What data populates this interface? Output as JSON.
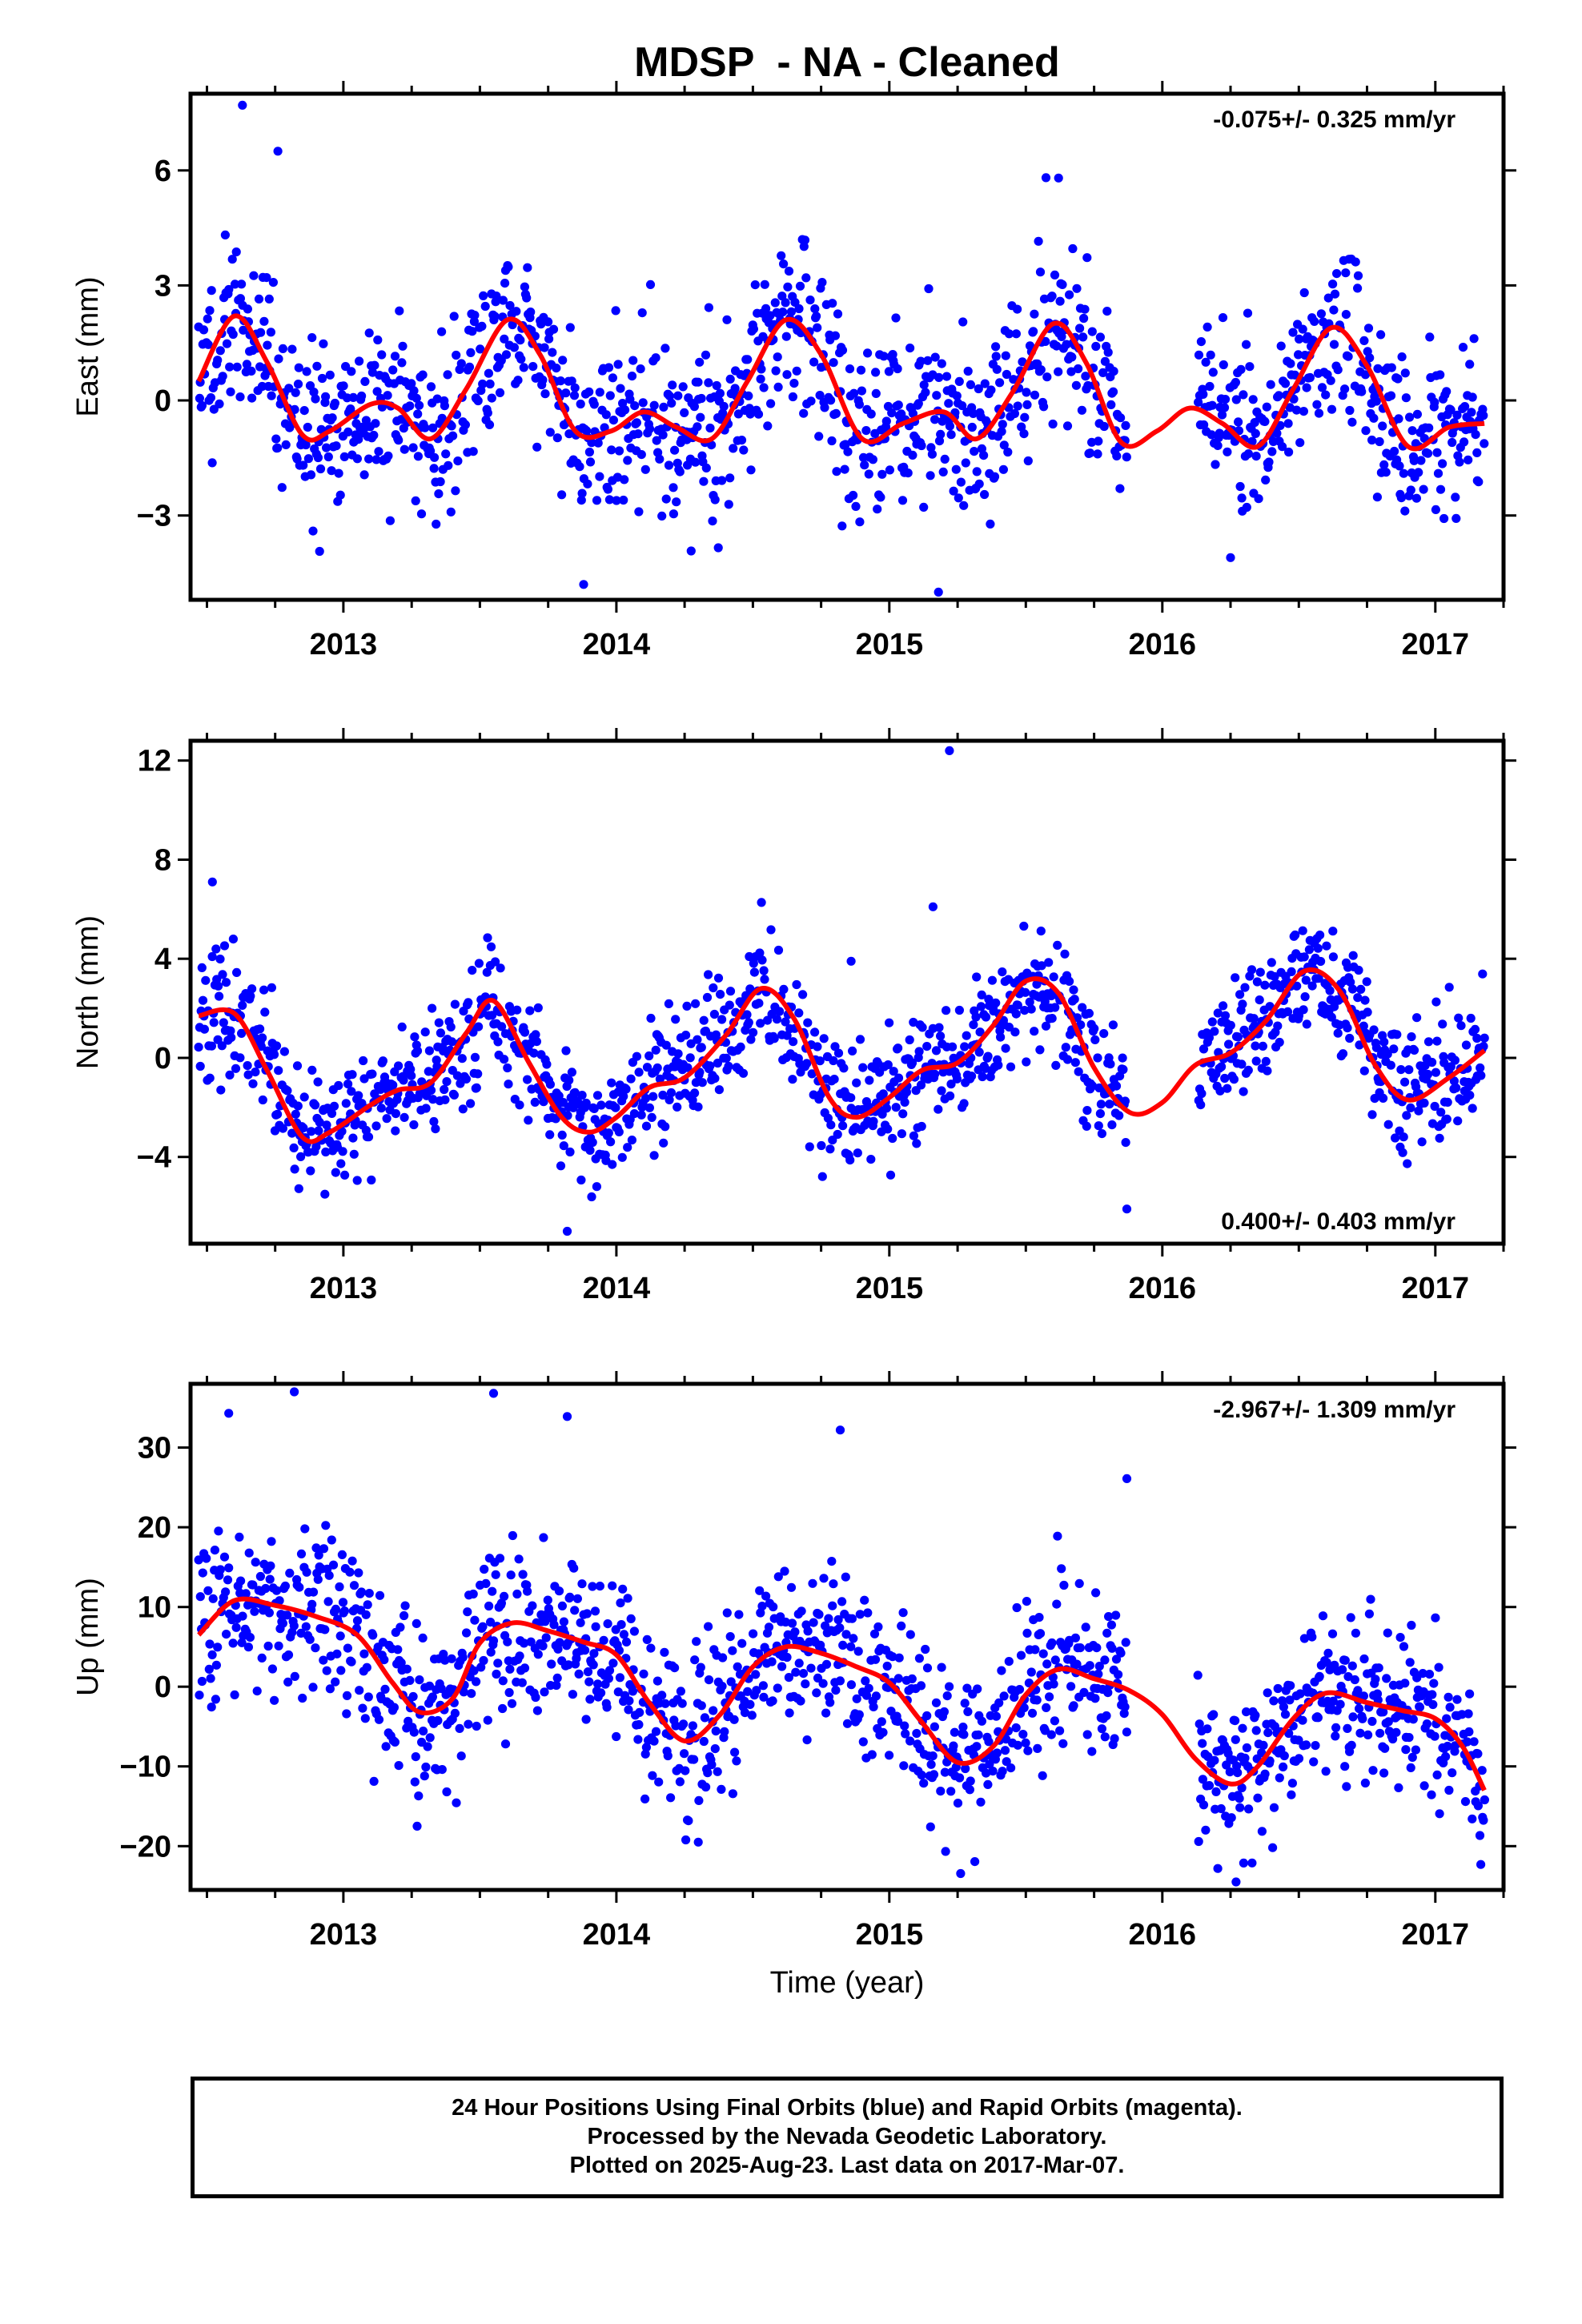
{
  "title": "MDSP  - NA - Cleaned",
  "xlabel": "Time (year)",
  "colors": {
    "points": "#0000ff",
    "fit": "#ff0000",
    "axes": "#000000"
  },
  "footer": {
    "line1": "24 Hour Positions Using Final Orbits (blue) and Rapid Orbits (magenta).",
    "line2": "Processed by the Nevada Geodetic Laboratory.",
    "line3": "Plotted on 2025-Aug-23. Last data on 2017-Mar-07."
  },
  "chart_data": [
    {
      "type": "scatter",
      "component": "east",
      "ylabel": "East (mm)",
      "rate_label": "-0.075+/- 0.325 mm/yr",
      "rate_position": "top-right",
      "xlim": [
        2012.44,
        2017.25
      ],
      "ylim": [
        -5.2,
        8.0
      ],
      "x_ticks": [
        2013,
        2014,
        2015,
        2016,
        2017
      ],
      "y_ticks": [
        -3,
        0,
        3,
        6
      ],
      "data_start": 2012.47,
      "data_end": 2017.18,
      "gaps": [
        [
          2015.87,
          2016.13
        ]
      ],
      "fit": {
        "x": [
          2012.47,
          2012.6,
          2012.72,
          2012.85,
          2012.95,
          2013.1,
          2013.2,
          2013.32,
          2013.45,
          2013.6,
          2013.72,
          2013.85,
          2013.98,
          2014.1,
          2014.22,
          2014.35,
          2014.48,
          2014.62,
          2014.75,
          2014.9,
          2015.05,
          2015.2,
          2015.32,
          2015.45,
          2015.6,
          2015.72,
          2015.85,
          2015.98,
          2016.1,
          2016.22,
          2016.35,
          2016.48,
          2016.62,
          2016.75,
          2016.9,
          2017.05,
          2017.18
        ],
        "y": [
          0.5,
          2.2,
          1.0,
          -0.9,
          -0.8,
          -0.1,
          -0.2,
          -1.0,
          0.3,
          2.1,
          1.2,
          -0.8,
          -0.8,
          -0.3,
          -0.7,
          -1.0,
          0.5,
          2.1,
          1.2,
          -1.0,
          -0.6,
          -0.3,
          -1.0,
          0.2,
          2.0,
          1.0,
          -1.1,
          -0.8,
          -0.2,
          -0.6,
          -1.2,
          0.3,
          1.9,
          0.9,
          -1.2,
          -0.7,
          -0.6
        ]
      },
      "outliers": [
        [
          2012.63,
          7.7
        ],
        [
          2012.76,
          6.5
        ],
        [
          2013.88,
          -4.8
        ],
        [
          2015.18,
          -5.0
        ],
        [
          2015.62,
          5.8
        ],
        [
          2016.25,
          -4.1
        ]
      ],
      "noise_sd": 1.1,
      "seed": 11
    },
    {
      "type": "scatter",
      "component": "north",
      "ylabel": "North (mm)",
      "rate_label": "0.400+/- 0.403 mm/yr",
      "rate_position": "bottom-right",
      "xlim": [
        2012.44,
        2017.25
      ],
      "ylim": [
        -7.5,
        12.8
      ],
      "x_ticks": [
        2013,
        2014,
        2015,
        2016,
        2017
      ],
      "y_ticks": [
        -4,
        0,
        4,
        8,
        12
      ],
      "data_start": 2012.47,
      "data_end": 2017.18,
      "gaps": [
        [
          2015.87,
          2016.13
        ]
      ],
      "fit": {
        "x": [
          2012.47,
          2012.6,
          2012.72,
          2012.85,
          2012.95,
          2013.1,
          2013.2,
          2013.32,
          2013.45,
          2013.55,
          2013.68,
          2013.8,
          2013.9,
          2014.0,
          2014.12,
          2014.25,
          2014.4,
          2014.53,
          2014.65,
          2014.78,
          2014.88,
          2015.0,
          2015.12,
          2015.25,
          2015.38,
          2015.5,
          2015.62,
          2015.75,
          2015.88,
          2016.0,
          2016.12,
          2016.25,
          2016.38,
          2016.52,
          2016.65,
          2016.78,
          2016.9,
          2017.05,
          2017.18
        ],
        "y": [
          1.7,
          1.8,
          -0.5,
          -3.2,
          -3.0,
          -1.9,
          -1.3,
          -1.0,
          1.0,
          2.3,
          -0.2,
          -2.4,
          -3.0,
          -2.4,
          -1.2,
          -0.8,
          0.9,
          2.8,
          1.6,
          -1.6,
          -2.4,
          -1.6,
          -0.5,
          -0.2,
          1.3,
          3.1,
          2.6,
          -0.4,
          -2.2,
          -1.8,
          -0.3,
          0.2,
          1.5,
          3.5,
          2.7,
          -0.3,
          -1.7,
          -0.8,
          0.3
        ]
      },
      "outliers": [
        [
          2015.22,
          12.4
        ],
        [
          2012.52,
          7.1
        ],
        [
          2015.16,
          6.1
        ],
        [
          2015.87,
          -6.1
        ],
        [
          2013.82,
          -7.0
        ],
        [
          2014.86,
          3.9
        ]
      ],
      "noise_sd": 1.2,
      "seed": 23
    },
    {
      "type": "scatter",
      "component": "up",
      "ylabel": "Up (mm)",
      "rate_label": "-2.967+/- 1.309 mm/yr",
      "rate_position": "top-right",
      "xlim": [
        2012.44,
        2017.25
      ],
      "ylim": [
        -25.5,
        38.0
      ],
      "x_ticks": [
        2013,
        2014,
        2015,
        2016,
        2017
      ],
      "y_ticks": [
        -20,
        -10,
        0,
        10,
        20,
        30
      ],
      "data_start": 2012.47,
      "data_end": 2017.18,
      "gaps": [
        [
          2015.87,
          2016.13
        ]
      ],
      "fit": {
        "x": [
          2012.47,
          2012.6,
          2012.75,
          2012.9,
          2013.05,
          2013.18,
          2013.28,
          2013.4,
          2013.5,
          2013.62,
          2013.75,
          2013.88,
          2014.0,
          2014.12,
          2014.25,
          2014.38,
          2014.5,
          2014.62,
          2014.75,
          2014.88,
          2015.0,
          2015.12,
          2015.25,
          2015.38,
          2015.5,
          2015.62,
          2015.75,
          2015.88,
          2016.0,
          2016.12,
          2016.25,
          2016.35,
          2016.48,
          2016.6,
          2016.75,
          2016.88,
          2017.0,
          2017.1,
          2017.18
        ],
        "y": [
          6.5,
          10.8,
          10.2,
          8.8,
          6.5,
          0.5,
          -3.2,
          -1.5,
          5.5,
          8.0,
          7.0,
          5.6,
          4.0,
          -2.0,
          -6.8,
          -3.5,
          2.5,
          5.0,
          4.2,
          2.5,
          0.5,
          -4.5,
          -9.5,
          -7.5,
          -1.0,
          2.2,
          1.0,
          -0.5,
          -3.5,
          -9.0,
          -12.2,
          -10.0,
          -4.0,
          -0.8,
          -2.0,
          -3.0,
          -4.0,
          -7.5,
          -13.0
        ]
      },
      "outliers": [
        [
          2012.58,
          34.3
        ],
        [
          2012.82,
          37.0
        ],
        [
          2013.55,
          36.8
        ],
        [
          2013.82,
          33.9
        ],
        [
          2014.82,
          32.2
        ],
        [
          2015.87,
          26.1
        ],
        [
          2016.27,
          -24.5
        ],
        [
          2013.27,
          -17.5
        ],
        [
          2014.3,
          -19.5
        ]
      ],
      "noise_sd": 5.0,
      "seed": 37
    }
  ]
}
